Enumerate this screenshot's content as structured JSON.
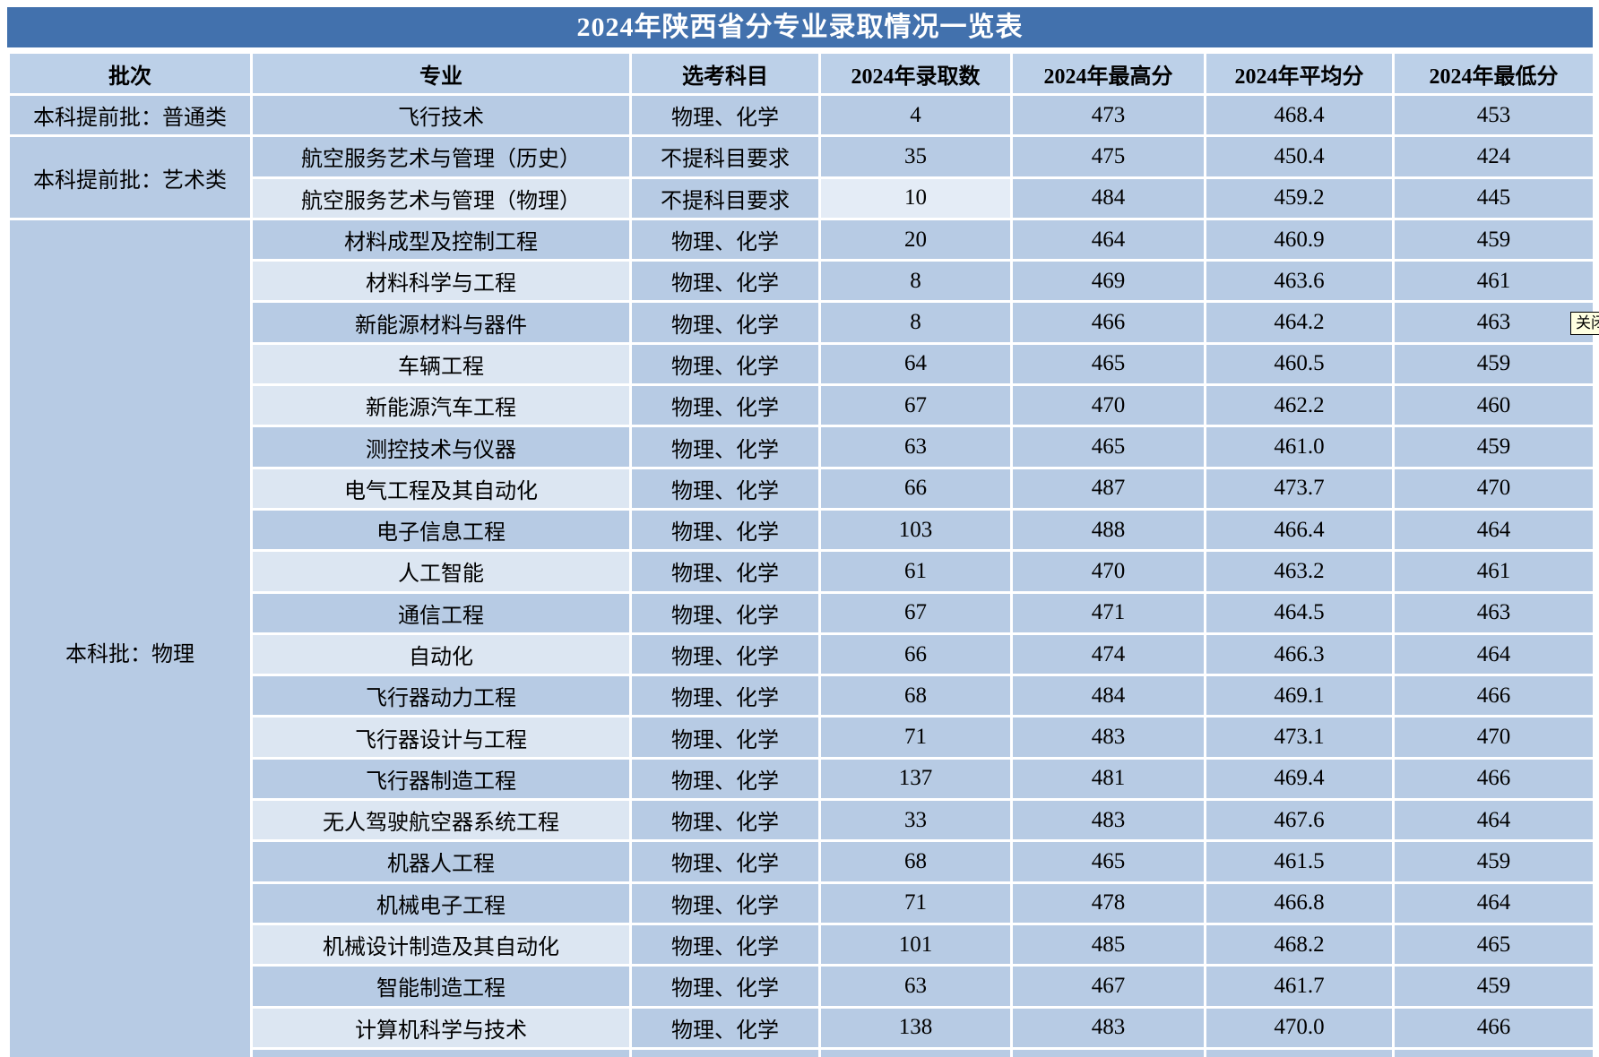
{
  "title": "2024年陕西省分专业录取情况一览表",
  "columns": [
    "批次",
    "专业",
    "选考科目",
    "2024年录取数",
    "2024年最高分",
    "2024年平均分",
    "2024年最低分"
  ],
  "batches": [
    {
      "label": "本科提前批：普通类",
      "rowspan": 1
    },
    {
      "label": "本科提前批：艺术类",
      "rowspan": 2
    },
    {
      "label": "本科批：物理",
      "rowspan": 21
    }
  ],
  "rows": [
    {
      "major": "飞行技术",
      "subjects": "物理、化学",
      "count": "4",
      "max": "473",
      "avg": "468.4",
      "min": "453",
      "shade": "dark",
      "count_selected": false
    },
    {
      "major": "航空服务艺术与管理（历史）",
      "subjects": "不提科目要求",
      "count": "35",
      "max": "475",
      "avg": "450.4",
      "min": "424",
      "shade": "dark",
      "count_selected": false
    },
    {
      "major": "航空服务艺术与管理（物理）",
      "subjects": "不提科目要求",
      "count": "10",
      "max": "484",
      "avg": "459.2",
      "min": "445",
      "shade": "light",
      "count_selected": true
    },
    {
      "major": "材料成型及控制工程",
      "subjects": "物理、化学",
      "count": "20",
      "max": "464",
      "avg": "460.9",
      "min": "459",
      "shade": "dark",
      "count_selected": false
    },
    {
      "major": "材料科学与工程",
      "subjects": "物理、化学",
      "count": "8",
      "max": "469",
      "avg": "463.6",
      "min": "461",
      "shade": "light",
      "count_selected": false
    },
    {
      "major": "新能源材料与器件",
      "subjects": "物理、化学",
      "count": "8",
      "max": "466",
      "avg": "464.2",
      "min": "463",
      "shade": "dark",
      "count_selected": false
    },
    {
      "major": "车辆工程",
      "subjects": "物理、化学",
      "count": "64",
      "max": "465",
      "avg": "460.5",
      "min": "459",
      "shade": "light",
      "count_selected": false
    },
    {
      "major": "新能源汽车工程",
      "subjects": "物理、化学",
      "count": "67",
      "max": "470",
      "avg": "462.2",
      "min": "460",
      "shade": "light",
      "count_selected": false
    },
    {
      "major": "测控技术与仪器",
      "subjects": "物理、化学",
      "count": "63",
      "max": "465",
      "avg": "461.0",
      "min": "459",
      "shade": "dark",
      "count_selected": false
    },
    {
      "major": "电气工程及其自动化",
      "subjects": "物理、化学",
      "count": "66",
      "max": "487",
      "avg": "473.7",
      "min": "470",
      "shade": "light",
      "count_selected": false
    },
    {
      "major": "电子信息工程",
      "subjects": "物理、化学",
      "count": "103",
      "max": "488",
      "avg": "466.4",
      "min": "464",
      "shade": "dark",
      "count_selected": false
    },
    {
      "major": "人工智能",
      "subjects": "物理、化学",
      "count": "61",
      "max": "470",
      "avg": "463.2",
      "min": "461",
      "shade": "light",
      "count_selected": false
    },
    {
      "major": "通信工程",
      "subjects": "物理、化学",
      "count": "67",
      "max": "471",
      "avg": "464.5",
      "min": "463",
      "shade": "dark",
      "count_selected": false
    },
    {
      "major": "自动化",
      "subjects": "物理、化学",
      "count": "66",
      "max": "474",
      "avg": "466.3",
      "min": "464",
      "shade": "light",
      "count_selected": false
    },
    {
      "major": "飞行器动力工程",
      "subjects": "物理、化学",
      "count": "68",
      "max": "484",
      "avg": "469.1",
      "min": "466",
      "shade": "dark",
      "count_selected": false
    },
    {
      "major": "飞行器设计与工程",
      "subjects": "物理、化学",
      "count": "71",
      "max": "483",
      "avg": "473.1",
      "min": "470",
      "shade": "light",
      "count_selected": false
    },
    {
      "major": "飞行器制造工程",
      "subjects": "物理、化学",
      "count": "137",
      "max": "481",
      "avg": "469.4",
      "min": "466",
      "shade": "dark",
      "count_selected": false
    },
    {
      "major": "无人驾驶航空器系统工程",
      "subjects": "物理、化学",
      "count": "33",
      "max": "483",
      "avg": "467.6",
      "min": "464",
      "shade": "light",
      "count_selected": false
    },
    {
      "major": "机器人工程",
      "subjects": "物理、化学",
      "count": "68",
      "max": "465",
      "avg": "461.5",
      "min": "459",
      "shade": "dark",
      "count_selected": false
    },
    {
      "major": "机械电子工程",
      "subjects": "物理、化学",
      "count": "71",
      "max": "478",
      "avg": "466.8",
      "min": "464",
      "shade": "dark",
      "count_selected": false
    },
    {
      "major": "机械设计制造及其自动化",
      "subjects": "物理、化学",
      "count": "101",
      "max": "485",
      "avg": "468.2",
      "min": "465",
      "shade": "light",
      "count_selected": false
    },
    {
      "major": "智能制造工程",
      "subjects": "物理、化学",
      "count": "63",
      "max": "467",
      "avg": "461.7",
      "min": "459",
      "shade": "dark",
      "count_selected": false
    },
    {
      "major": "计算机科学与技术",
      "subjects": "物理、化学",
      "count": "138",
      "max": "483",
      "avg": "470.0",
      "min": "466",
      "shade": "light",
      "count_selected": false
    },
    {
      "major": "",
      "subjects": "",
      "count": "",
      "max": "",
      "avg": "",
      "min": "",
      "shade": "dark",
      "count_selected": false,
      "partial": true
    }
  ],
  "tooltip": {
    "label": "关闭"
  },
  "colors": {
    "title_bar": "#4271ad",
    "header_bg": "#bcd0e8",
    "band_dark": "#b7cbe4",
    "band_light": "#dce6f2",
    "selected_cell": "#e4ecf6",
    "tooltip_bg": "#ffffe1"
  }
}
